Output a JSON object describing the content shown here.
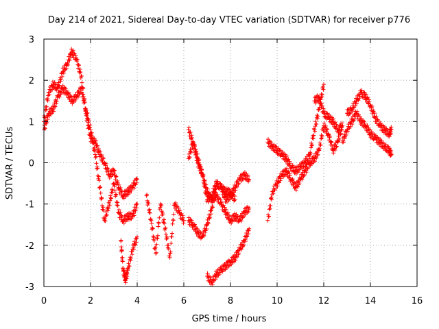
{
  "chart_data": {
    "type": "scatter",
    "title": "Day 214 of 2021, Sidereal Day-to-day VTEC variation (SDTVAR) for receiver p776",
    "xlabel": "GPS time / hours",
    "ylabel": "SDTVAR / TECUs",
    "xlim": [
      0,
      16
    ],
    "ylim": [
      -3,
      3
    ],
    "xticks": [
      0,
      2,
      4,
      6,
      8,
      10,
      12,
      14,
      16
    ],
    "yticks": [
      -3,
      -2,
      -1,
      0,
      1,
      2,
      3
    ],
    "grid": true,
    "marker": "+",
    "color": "#ff0000",
    "series": [
      {
        "name": "trace-a",
        "x": [
          0.0,
          0.2,
          0.4,
          0.6,
          0.8,
          1.0,
          1.2,
          1.4,
          1.6,
          1.8,
          2.0,
          2.2,
          2.4,
          2.6,
          2.8,
          3.0,
          3.2,
          3.4,
          3.6,
          3.8,
          4.0
        ],
        "y": [
          1.0,
          1.7,
          1.9,
          1.8,
          2.2,
          2.4,
          2.7,
          2.5,
          2.1,
          1.2,
          0.6,
          0.5,
          0.2,
          0.0,
          -0.3,
          -0.2,
          -0.6,
          -0.8,
          -0.7,
          -0.6,
          -0.4
        ]
      },
      {
        "name": "trace-b",
        "x": [
          0.0,
          0.2,
          0.4,
          0.6,
          0.8,
          1.0,
          1.2,
          1.4,
          1.6,
          1.8,
          2.0,
          2.2,
          2.4,
          2.6,
          2.8,
          3.0,
          3.2,
          3.4,
          3.6,
          3.8,
          4.0
        ],
        "y": [
          0.8,
          1.2,
          1.3,
          1.6,
          1.8,
          1.7,
          1.5,
          1.6,
          1.8,
          1.3,
          0.8,
          0.2,
          -0.6,
          -1.4,
          -1.0,
          -0.5,
          -1.2,
          -1.4,
          -1.3,
          -1.3,
          -1.0
        ]
      },
      {
        "name": "trace-c",
        "x": [
          3.3,
          3.4,
          3.5,
          3.6,
          3.8,
          4.0
        ],
        "y": [
          -1.9,
          -2.6,
          -2.85,
          -2.6,
          -2.1,
          -1.8
        ]
      },
      {
        "name": "trace-d",
        "x": [
          4.4,
          4.6,
          4.8,
          5.0,
          5.2,
          5.4,
          5.6,
          5.8,
          6.0
        ],
        "y": [
          -0.8,
          -1.4,
          -2.2,
          -1.0,
          -1.6,
          -2.3,
          -1.0,
          -1.2,
          -1.4
        ]
      },
      {
        "name": "trace-e",
        "x": [
          6.2,
          6.4,
          6.6,
          6.8,
          7.0,
          7.2,
          7.4,
          7.6,
          7.8,
          8.0,
          8.2,
          8.4,
          8.6,
          8.8
        ],
        "y": [
          0.8,
          0.5,
          0.0,
          -0.3,
          -0.7,
          -0.9,
          -0.8,
          -1.0,
          -1.2,
          -1.4,
          -1.3,
          -1.4,
          -1.2,
          -1.1
        ]
      },
      {
        "name": "trace-f",
        "x": [
          6.2,
          6.4,
          6.6,
          6.8,
          7.0,
          7.2,
          7.4,
          7.6,
          7.8,
          8.0,
          8.2,
          8.4,
          8.6,
          8.8
        ],
        "y": [
          -1.4,
          -1.5,
          -1.7,
          -1.8,
          -1.5,
          -1.1,
          -0.5,
          -0.6,
          -0.9,
          -0.8,
          -0.6,
          -0.4,
          -0.3,
          -0.4
        ]
      },
      {
        "name": "trace-g",
        "x": [
          6.2,
          6.4,
          6.6,
          6.8,
          7.0,
          7.2,
          7.4,
          7.6,
          7.8,
          8.0,
          8.2
        ],
        "y": [
          0.1,
          0.5,
          0.1,
          -0.3,
          -0.9,
          -0.8,
          -0.5,
          -0.6,
          -0.7,
          -0.7,
          -0.9
        ]
      },
      {
        "name": "trace-h",
        "x": [
          7.0,
          7.2,
          7.4,
          7.6,
          7.8,
          8.0,
          8.2,
          8.4,
          8.6,
          8.8
        ],
        "y": [
          -2.75,
          -2.9,
          -2.7,
          -2.6,
          -2.5,
          -2.4,
          -2.3,
          -2.1,
          -1.9,
          -1.6
        ]
      },
      {
        "name": "trace-i",
        "x": [
          9.6,
          9.8,
          10.0,
          10.2,
          10.4,
          10.6,
          10.8,
          11.0,
          11.2,
          11.4,
          11.6,
          11.8,
          12.0,
          12.2,
          12.4,
          12.6,
          12.8
        ],
        "y": [
          -1.4,
          -0.7,
          -0.5,
          -0.3,
          -0.2,
          -0.4,
          -0.6,
          -0.4,
          -0.2,
          0.0,
          0.1,
          0.3,
          0.9,
          0.7,
          0.3,
          0.5,
          0.9
        ]
      },
      {
        "name": "trace-j",
        "x": [
          9.6,
          9.8,
          10.0,
          10.2,
          10.4,
          10.6,
          10.8,
          11.0,
          11.2,
          11.4,
          11.6,
          11.8,
          12.0
        ],
        "y": [
          0.5,
          0.4,
          0.3,
          0.2,
          0.1,
          -0.1,
          -0.2,
          -0.1,
          0.0,
          0.2,
          0.8,
          1.3,
          1.9
        ]
      },
      {
        "name": "trace-k",
        "x": [
          11.6,
          11.8,
          12.0,
          12.2,
          12.4,
          12.6,
          12.8
        ],
        "y": [
          1.5,
          1.6,
          1.2,
          1.1,
          1.0,
          0.8,
          0.9
        ]
      },
      {
        "name": "trace-l",
        "x": [
          12.8,
          13.0,
          13.2,
          13.4,
          13.6,
          13.8,
          14.0,
          14.2,
          14.4,
          14.6,
          14.8,
          14.9
        ],
        "y": [
          0.5,
          0.8,
          1.0,
          1.2,
          1.0,
          0.9,
          0.7,
          0.6,
          0.5,
          0.4,
          0.3,
          0.2
        ]
      },
      {
        "name": "trace-m",
        "x": [
          13.0,
          13.2,
          13.4,
          13.6,
          13.8,
          14.0,
          14.2,
          14.4,
          14.6,
          14.8,
          14.9
        ],
        "y": [
          1.2,
          1.3,
          1.5,
          1.7,
          1.6,
          1.4,
          1.1,
          0.9,
          0.8,
          0.7,
          0.8
        ]
      }
    ]
  }
}
